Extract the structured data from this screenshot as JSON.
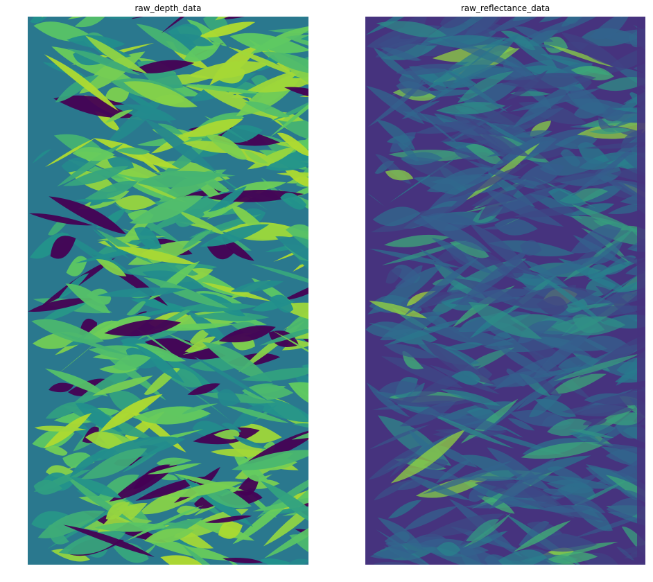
{
  "figure": {
    "panels": [
      {
        "title": "raw_depth_data",
        "colormap": "viridis",
        "colors": {
          "low": "#440154",
          "mid_low": "#2a788e",
          "mid": "#21918c",
          "mid_high": "#5ec962",
          "high": "#c8e020"
        }
      },
      {
        "title": "raw_reflectance_data",
        "colormap": "viridis",
        "colors": {
          "low": "#46337e",
          "mid_low": "#365c8d",
          "mid": "#277f8e",
          "mid_high": "#4ac16d",
          "high": "#c2df23"
        }
      }
    ]
  }
}
